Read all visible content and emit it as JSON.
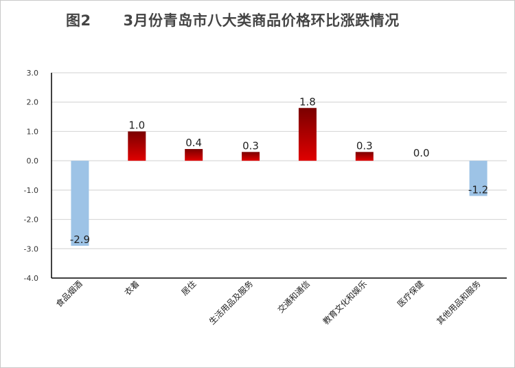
{
  "page": {
    "title": "图2      3月份青岛市八大类商品价格环比涨跌情况"
  },
  "chart_data": {
    "type": "bar",
    "title": "图2      3月份青岛市八大类商品价格环比涨跌情况",
    "categories": [
      "食品烟酒",
      "衣着",
      "居住",
      "生活用品及服务",
      "交通和通信",
      "教育文化和娱乐",
      "医疗保健",
      "其他用品和服务"
    ],
    "values": [
      -2.9,
      1.0,
      0.4,
      0.3,
      1.8,
      0.3,
      0.0,
      -1.2
    ],
    "data_labels": [
      "-2.9",
      "1.0",
      "0.4",
      "0.3",
      "1.8",
      "0.3",
      "0.0",
      "-1.2"
    ],
    "ylim": [
      -4.0,
      3.0
    ],
    "yticks": [
      "3.0",
      "2.0",
      "1.0",
      "0.0",
      "-1.0",
      "-2.0",
      "-3.0",
      "-4.0"
    ],
    "ytick_values": [
      3,
      2,
      1,
      0,
      -1,
      -2,
      -3,
      -4
    ],
    "grid": true,
    "legend": "none",
    "colors": {
      "positive_top": "#7a0000",
      "positive_bottom": "#e00000",
      "negative": "#9dc3e6",
      "grid": "#d9d9d9",
      "axis": "#000000"
    }
  }
}
